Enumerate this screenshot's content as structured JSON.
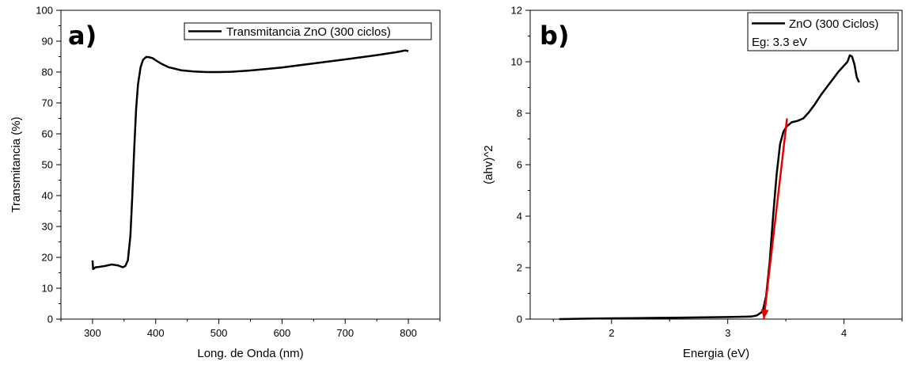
{
  "chart_data": [
    {
      "type": "line",
      "panel_label": "a)",
      "xlabel": "Long. de Onda (nm)",
      "ylabel": "Transmitancia (%)",
      "xlim": [
        250,
        850
      ],
      "ylim": [
        0,
        100
      ],
      "xticks": [
        300,
        400,
        500,
        600,
        700,
        800
      ],
      "yticks": [
        0,
        10,
        20,
        30,
        40,
        50,
        60,
        70,
        80,
        90,
        100
      ],
      "legend": {
        "position": "top-right",
        "entries": [
          "Transmitancia ZnO (300 ciclos)"
        ]
      },
      "series": [
        {
          "name": "Transmitancia ZnO (300 ciclos)",
          "color": "#000000",
          "x": [
            300,
            301,
            305,
            310,
            320,
            330,
            340,
            348,
            352,
            356,
            360,
            363,
            366,
            369,
            372,
            376,
            380,
            385,
            390,
            395,
            400,
            410,
            420,
            440,
            460,
            480,
            500,
            520,
            550,
            600,
            650,
            700,
            750,
            780,
            790,
            795,
            800
          ],
          "y": [
            19.0,
            16.2,
            16.8,
            16.9,
            17.2,
            17.7,
            17.4,
            16.8,
            17.2,
            19.0,
            27.0,
            40.0,
            55.0,
            68.0,
            76.0,
            81.5,
            84.0,
            84.9,
            84.8,
            84.5,
            83.8,
            82.6,
            81.6,
            80.6,
            80.2,
            80.0,
            80.0,
            80.1,
            80.5,
            81.5,
            82.8,
            84.1,
            85.5,
            86.4,
            86.8,
            87.0,
            86.8
          ]
        }
      ]
    },
    {
      "type": "line",
      "panel_label": "b)",
      "xlabel": "Energia (eV)",
      "ylabel": "(ahv)^2",
      "xlim": [
        1.3,
        4.5
      ],
      "ylim": [
        0,
        12
      ],
      "xticks": [
        2,
        3,
        4
      ],
      "yticks": [
        0,
        2,
        4,
        6,
        8,
        10,
        12
      ],
      "legend": {
        "position": "top-right",
        "entries": [
          "ZnO (300 Ciclos)",
          "Eg: 3.3 eV"
        ]
      },
      "series": [
        {
          "name": "ZnO (300 Ciclos)",
          "color": "#000000",
          "x": [
            1.55,
            1.8,
            2.0,
            2.2,
            2.4,
            2.6,
            2.8,
            3.0,
            3.2,
            3.25,
            3.3,
            3.33,
            3.36,
            3.39,
            3.42,
            3.45,
            3.48,
            3.51,
            3.55,
            3.6,
            3.65,
            3.7,
            3.75,
            3.8,
            3.85,
            3.9,
            3.95,
            4.0,
            4.03,
            4.05,
            4.07,
            4.09,
            4.11,
            4.13
          ],
          "y": [
            0.0,
            0.02,
            0.03,
            0.04,
            0.05,
            0.06,
            0.07,
            0.08,
            0.1,
            0.14,
            0.3,
            0.9,
            2.2,
            4.0,
            5.6,
            6.8,
            7.3,
            7.5,
            7.65,
            7.7,
            7.8,
            8.05,
            8.35,
            8.7,
            9.0,
            9.3,
            9.6,
            9.85,
            10.0,
            10.25,
            10.2,
            9.9,
            9.4,
            9.2
          ]
        },
        {
          "name": "Eg: 3.3 eV",
          "kind": "tangent",
          "color": "#e60000",
          "x": [
            3.51,
            3.31
          ],
          "y": [
            7.8,
            0.0
          ]
        }
      ]
    }
  ]
}
